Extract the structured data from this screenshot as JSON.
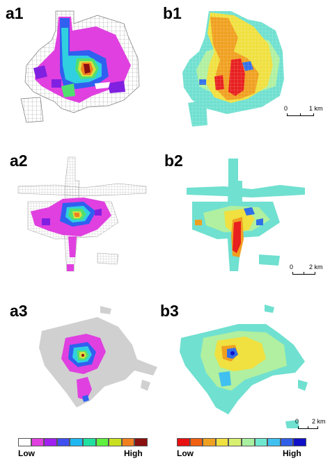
{
  "panels": {
    "a1": "a1",
    "b1": "b1",
    "a2": "a2",
    "b2": "b2",
    "a3": "a3",
    "b3": "b3"
  },
  "scalebars": {
    "b1": {
      "zero": "0",
      "dist": "1 km"
    },
    "b2": {
      "zero": "0",
      "dist": "2 km"
    },
    "b3": {
      "zero": "0",
      "dist": "2 km"
    }
  },
  "legend_a": {
    "low": "Low",
    "high": "High",
    "colors": [
      "#ffffff",
      "#e040e0",
      "#a020f0",
      "#4050f0",
      "#20b8f0",
      "#20e0a0",
      "#60f040",
      "#c8e020",
      "#f08020",
      "#8b1010"
    ]
  },
  "legend_b": {
    "low": "Low",
    "high": "High",
    "colors": [
      "#e81010",
      "#f06010",
      "#f0a020",
      "#f0e040",
      "#d8f070",
      "#a8f0a0",
      "#70e8d0",
      "#40c0f0",
      "#3060e8",
      "#1010c8"
    ]
  },
  "map_colors": {
    "a_grid": "#bbbbbb",
    "a_pink": "#e040e0",
    "a_purple": "#8020e0",
    "a_blue": "#3060f0",
    "a_cyan": "#30d0e0",
    "a_green": "#50e070",
    "a_yellow": "#d8e040",
    "a_orange": "#f08020",
    "a_dark": "#8b1010",
    "b_cyan": "#70e0d0",
    "b_lightgreen": "#b0f0a0",
    "b_yellow": "#f0e040",
    "b_orange": "#f0a020",
    "b_red": "#e82020",
    "b_blue": "#3070e8"
  }
}
